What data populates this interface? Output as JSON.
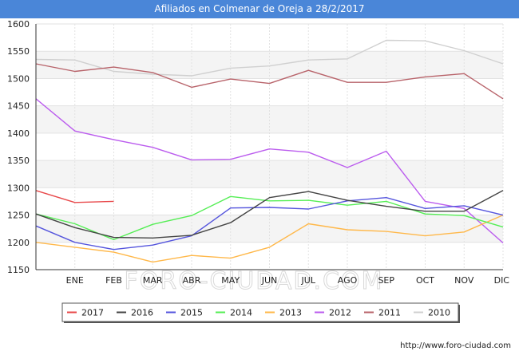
{
  "title": "Afiliados en Colmenar de Oreja a 28/2/2017",
  "watermark": "FORO-CIUDAD.COM",
  "source_url": "http://www.foro-ciudad.com",
  "chart_data": {
    "type": "line",
    "title": "Afiliados en Colmenar de Oreja a 28/2/2017",
    "categories": [
      "",
      "ENE",
      "FEB",
      "MAR",
      "ABR",
      "MAY",
      "JUN",
      "JUL",
      "AGO",
      "SEP",
      "OCT",
      "NOV",
      "DIC"
    ],
    "ylim": [
      1150,
      1600
    ],
    "yticks": [
      1150,
      1200,
      1250,
      1300,
      1350,
      1400,
      1450,
      1500,
      1550,
      1600
    ],
    "ytick_labels": [
      "1150",
      "1200",
      "1250",
      "1300",
      "1350",
      "1400",
      "1450",
      "1500",
      "1550",
      "1600"
    ],
    "grid": true,
    "legend_position": "bottom",
    "series": [
      {
        "name": "2017",
        "color": "#e8484a",
        "values": [
          1295,
          1273,
          1275,
          null,
          null,
          null,
          null,
          null,
          null,
          null,
          null,
          null,
          null
        ]
      },
      {
        "name": "2016",
        "color": "#444444",
        "values": [
          1252,
          1227,
          1209,
          1208,
          1213,
          1236,
          1282,
          1293,
          1277,
          1266,
          1257,
          1257,
          1295
        ]
      },
      {
        "name": "2015",
        "color": "#5555dd",
        "values": [
          1230,
          1200,
          1187,
          1195,
          1212,
          1263,
          1264,
          1261,
          1276,
          1282,
          1262,
          1267,
          1250
        ]
      },
      {
        "name": "2014",
        "color": "#55ee55",
        "values": [
          1252,
          1234,
          1205,
          1233,
          1249,
          1284,
          1276,
          1277,
          1268,
          1275,
          1252,
          1249,
          1228
        ]
      },
      {
        "name": "2013",
        "color": "#ffb84a",
        "values": [
          1200,
          1191,
          1182,
          1164,
          1176,
          1171,
          1191,
          1234,
          1223,
          1220,
          1212,
          1219,
          1250
        ]
      },
      {
        "name": "2012",
        "color": "#bb5cee",
        "values": [
          1463,
          1404,
          1388,
          1374,
          1351,
          1352,
          1371,
          1365,
          1337,
          1367,
          1275,
          1262,
          1199
        ]
      },
      {
        "name": "2011",
        "color": "#b8636a",
        "values": [
          1527,
          1513,
          1521,
          1511,
          1484,
          1499,
          1491,
          1515,
          1493,
          1493,
          1503,
          1509,
          1463
        ]
      },
      {
        "name": "2010",
        "color": "#d0d0d0",
        "values": [
          1535,
          1534,
          1513,
          1508,
          1505,
          1519,
          1523,
          1534,
          1536,
          1570,
          1569,
          1551,
          1527
        ]
      }
    ]
  }
}
